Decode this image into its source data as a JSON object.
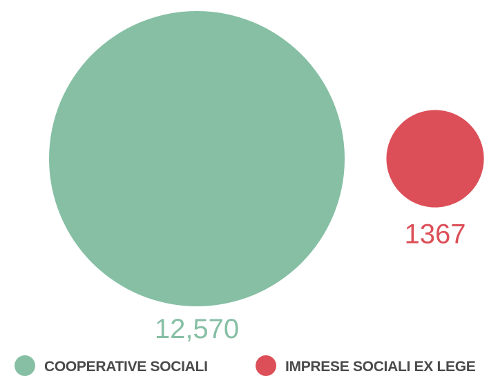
{
  "chart_data": {
    "type": "bubble",
    "series": [
      {
        "name": "COOPERATIVE SOCIALI",
        "value": 12570,
        "value_label": "12,570",
        "color": "#86bfa4"
      },
      {
        "name": "IMPRESE SOCIALI EX LEGE",
        "value": 1367,
        "value_label": "1367",
        "color": "#dc4f58"
      }
    ],
    "legend_position": "bottom",
    "grid": false
  }
}
